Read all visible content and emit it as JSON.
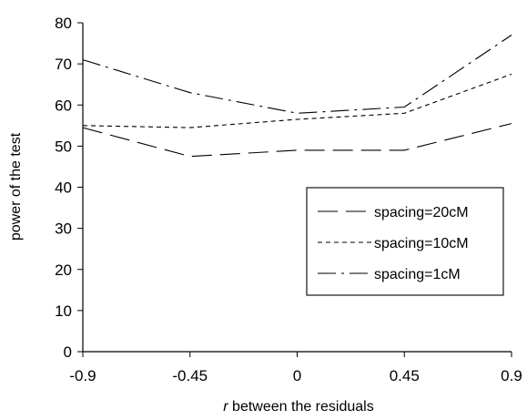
{
  "chart_data": {
    "type": "line",
    "x": [
      -0.9,
      -0.45,
      0,
      0.45,
      0.9
    ],
    "x_tick_labels": [
      "-0.9",
      "-0.45",
      "0",
      "0.45",
      "0.9"
    ],
    "series": [
      {
        "name": "spacing=20cM",
        "values": [
          54.5,
          47.5,
          49,
          49,
          55.5
        ],
        "dash": "long-dash"
      },
      {
        "name": "spacing=10cM",
        "values": [
          55,
          54.5,
          56.5,
          58,
          67.5
        ],
        "dash": "short-dash"
      },
      {
        "name": "spacing=1cM",
        "values": [
          71,
          63,
          58,
          59.5,
          77
        ],
        "dash": "dash-dot"
      }
    ],
    "y_ticks": [
      0,
      10,
      20,
      30,
      40,
      50,
      60,
      70,
      80
    ],
    "ylim": [
      0,
      80
    ],
    "xlim": [
      -0.9,
      0.9
    ],
    "xlabel_italic": "r",
    "xlabel": " between the residuals",
    "ylabel": "power of the test",
    "grid": false,
    "legend_position": "right"
  }
}
